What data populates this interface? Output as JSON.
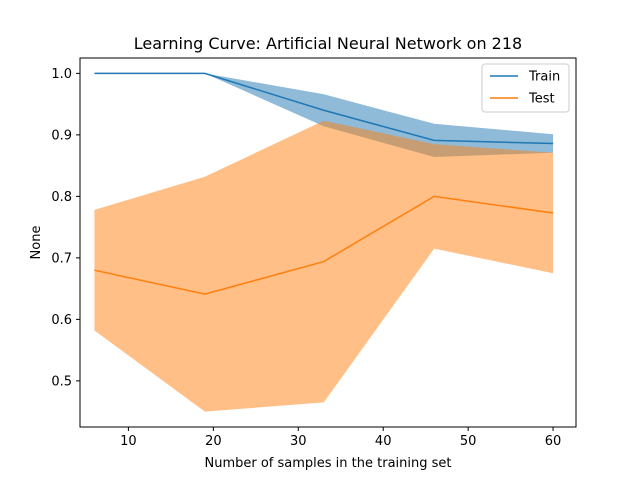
{
  "chart_data": {
    "type": "line",
    "title": "Learning Curve: Artificial Neural Network on 218",
    "xlabel": "Number of samples in the training set",
    "ylabel": "None",
    "xlim": [
      4.3,
      62.7
    ],
    "ylim": [
      0.425,
      1.025
    ],
    "xticks": [
      10,
      20,
      30,
      40,
      50,
      60
    ],
    "yticks": [
      0.5,
      0.6,
      0.7,
      0.8,
      0.9,
      1.0
    ],
    "grid": false,
    "legend_position": "top-right",
    "x": [
      6,
      19,
      33,
      46,
      60
    ],
    "series": [
      {
        "name": "Train",
        "color": "#1f77b4",
        "band_color": "#1f77b4",
        "band_opacity": 0.5,
        "values": [
          1.0,
          1.0,
          0.94,
          0.891,
          0.886
        ],
        "lower": [
          1.0,
          1.0,
          0.914,
          0.864,
          0.871
        ],
        "upper": [
          1.0,
          1.0,
          0.966,
          0.918,
          0.901
        ]
      },
      {
        "name": "Test",
        "color": "#ff7f0e",
        "band_color": "#ff7f0e",
        "band_opacity": 0.5,
        "values": [
          0.68,
          0.641,
          0.694,
          0.8,
          0.773
        ],
        "lower": [
          0.582,
          0.45,
          0.465,
          0.715,
          0.675
        ],
        "upper": [
          0.778,
          0.832,
          0.923,
          0.885,
          0.871
        ]
      }
    ]
  }
}
